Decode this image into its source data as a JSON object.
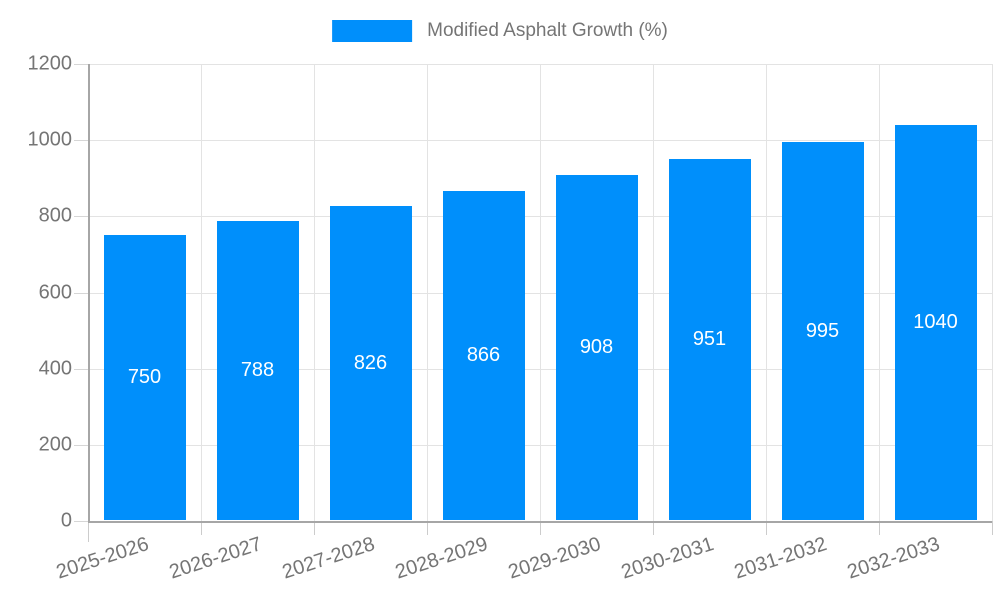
{
  "legend": {
    "label": "Modified Asphalt Growth (%)",
    "swatch_color": "#008FFB"
  },
  "chart_data": {
    "type": "bar",
    "title": "",
    "xlabel": "",
    "ylabel": "",
    "categories": [
      "2025-2026",
      "2026-2027",
      "2027-2028",
      "2028-2029",
      "2029-2030",
      "2030-2031",
      "2031-2032",
      "2032-2033"
    ],
    "series": [
      {
        "name": "Modified Asphalt Growth (%)",
        "values": [
          750,
          788,
          826,
          866,
          908,
          951,
          995,
          1040
        ]
      }
    ],
    "data_labels": [
      "750",
      "788",
      "826",
      "866",
      "908",
      "951",
      "995",
      "1040"
    ],
    "ylim": [
      0,
      1200
    ],
    "yticks": [
      0,
      200,
      400,
      600,
      800,
      1000,
      1200
    ],
    "ytick_labels": [
      "0",
      "200",
      "400",
      "600",
      "800",
      "1000",
      "1200"
    ],
    "legend_position": "top",
    "grid": "horizontal-and-vertical",
    "bar_color": "#008FFB",
    "bar_label_color": "#FFFFFF",
    "axis_text_color": "#757575",
    "grid_color": "#E3E3E3",
    "axis_line_color": "#A6A6A6"
  }
}
